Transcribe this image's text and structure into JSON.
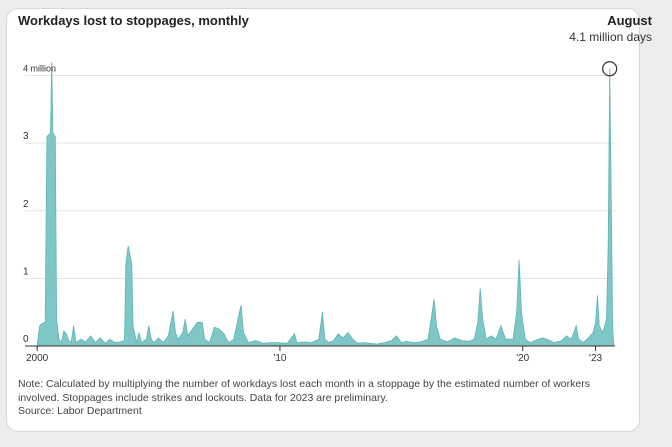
{
  "title": "Workdays lost to stoppages, monthly",
  "annotation": {
    "label": "August",
    "value_text": "4.1 million days"
  },
  "note": "Note: Calculated by multiplying the number of workdays lost each month in a stoppage by the estimated number of workers involved. Stoppages include strikes and lockouts. Data for 2023 are preliminary.",
  "source": "Source: Labor Department",
  "colors": {
    "area": "#7fc6c6",
    "area_stroke": "#5fb5b5",
    "grid": "#e3e3e3",
    "axis": "#333333"
  },
  "chart_data": {
    "type": "area",
    "title": "Workdays lost to stoppages, monthly",
    "xlabel": "",
    "ylabel": "",
    "x_range": [
      2000,
      2023.75
    ],
    "ylim": [
      0,
      4.2
    ],
    "y_ticks": [
      {
        "value": 0,
        "label": "0"
      },
      {
        "value": 1,
        "label": "1"
      },
      {
        "value": 2,
        "label": "2"
      },
      {
        "value": 3,
        "label": "3"
      },
      {
        "value": 4,
        "label": "4 million"
      }
    ],
    "x_ticks": [
      {
        "value": 2000,
        "label": "2000"
      },
      {
        "value": 2010,
        "label": "'10"
      },
      {
        "value": 2020,
        "label": "'20"
      },
      {
        "value": 2023,
        "label": "'23"
      }
    ],
    "grid": true,
    "highlight": {
      "x": 2023.58,
      "y": 4.1
    },
    "series": [
      {
        "points": [
          [
            2000.0,
            0.0
          ],
          [
            2000.1,
            0.3
          ],
          [
            2000.2,
            0.33
          ],
          [
            2000.33,
            0.35
          ],
          [
            2000.4,
            3.1
          ],
          [
            2000.55,
            3.15
          ],
          [
            2000.6,
            4.2
          ],
          [
            2000.65,
            3.15
          ],
          [
            2000.75,
            3.1
          ],
          [
            2000.8,
            0.4
          ],
          [
            2000.9,
            0.1
          ],
          [
            2001.0,
            0.05
          ],
          [
            2001.1,
            0.22
          ],
          [
            2001.2,
            0.18
          ],
          [
            2001.3,
            0.08
          ],
          [
            2001.4,
            0.05
          ],
          [
            2001.5,
            0.3
          ],
          [
            2001.6,
            0.05
          ],
          [
            2001.8,
            0.1
          ],
          [
            2002.0,
            0.06
          ],
          [
            2002.2,
            0.15
          ],
          [
            2002.4,
            0.05
          ],
          [
            2002.6,
            0.12
          ],
          [
            2002.8,
            0.04
          ],
          [
            2003.0,
            0.1
          ],
          [
            2003.2,
            0.05
          ],
          [
            2003.4,
            0.06
          ],
          [
            2003.6,
            0.08
          ],
          [
            2003.65,
            1.2
          ],
          [
            2003.7,
            1.35
          ],
          [
            2003.75,
            1.48
          ],
          [
            2003.85,
            1.3
          ],
          [
            2003.9,
            1.2
          ],
          [
            2003.95,
            0.3
          ],
          [
            2004.1,
            0.05
          ],
          [
            2004.2,
            0.2
          ],
          [
            2004.3,
            0.05
          ],
          [
            2004.5,
            0.1
          ],
          [
            2004.6,
            0.3
          ],
          [
            2004.7,
            0.1
          ],
          [
            2004.8,
            0.05
          ],
          [
            2005.0,
            0.12
          ],
          [
            2005.2,
            0.05
          ],
          [
            2005.4,
            0.15
          ],
          [
            2005.6,
            0.52
          ],
          [
            2005.7,
            0.2
          ],
          [
            2005.8,
            0.1
          ],
          [
            2006.0,
            0.2
          ],
          [
            2006.1,
            0.4
          ],
          [
            2006.2,
            0.15
          ],
          [
            2006.4,
            0.25
          ],
          [
            2006.6,
            0.35
          ],
          [
            2006.8,
            0.35
          ],
          [
            2006.9,
            0.1
          ],
          [
            2007.1,
            0.05
          ],
          [
            2007.3,
            0.28
          ],
          [
            2007.5,
            0.25
          ],
          [
            2007.7,
            0.18
          ],
          [
            2007.8,
            0.1
          ],
          [
            2007.9,
            0.05
          ],
          [
            2008.1,
            0.1
          ],
          [
            2008.3,
            0.45
          ],
          [
            2008.4,
            0.6
          ],
          [
            2008.5,
            0.2
          ],
          [
            2008.7,
            0.05
          ],
          [
            2009.0,
            0.08
          ],
          [
            2009.3,
            0.04
          ],
          [
            2009.6,
            0.05
          ],
          [
            2009.9,
            0.05
          ],
          [
            2010.3,
            0.04
          ],
          [
            2010.6,
            0.18
          ],
          [
            2010.7,
            0.05
          ],
          [
            2011.0,
            0.06
          ],
          [
            2011.3,
            0.05
          ],
          [
            2011.6,
            0.1
          ],
          [
            2011.75,
            0.5
          ],
          [
            2011.85,
            0.1
          ],
          [
            2012.0,
            0.05
          ],
          [
            2012.2,
            0.08
          ],
          [
            2012.4,
            0.18
          ],
          [
            2012.6,
            0.12
          ],
          [
            2012.8,
            0.2
          ],
          [
            2013.0,
            0.1
          ],
          [
            2013.2,
            0.04
          ],
          [
            2013.5,
            0.05
          ],
          [
            2014.0,
            0.03
          ],
          [
            2014.3,
            0.05
          ],
          [
            2014.6,
            0.08
          ],
          [
            2014.8,
            0.15
          ],
          [
            2015.0,
            0.05
          ],
          [
            2015.2,
            0.07
          ],
          [
            2015.5,
            0.05
          ],
          [
            2015.8,
            0.06
          ],
          [
            2016.1,
            0.1
          ],
          [
            2016.25,
            0.45
          ],
          [
            2016.35,
            0.7
          ],
          [
            2016.45,
            0.3
          ],
          [
            2016.6,
            0.1
          ],
          [
            2016.9,
            0.06
          ],
          [
            2017.2,
            0.12
          ],
          [
            2017.5,
            0.08
          ],
          [
            2017.8,
            0.07
          ],
          [
            2018.0,
            0.1
          ],
          [
            2018.15,
            0.35
          ],
          [
            2018.25,
            0.85
          ],
          [
            2018.35,
            0.4
          ],
          [
            2018.5,
            0.1
          ],
          [
            2018.7,
            0.15
          ],
          [
            2018.9,
            0.1
          ],
          [
            2019.1,
            0.3
          ],
          [
            2019.3,
            0.1
          ],
          [
            2019.6,
            0.1
          ],
          [
            2019.75,
            0.5
          ],
          [
            2019.85,
            1.27
          ],
          [
            2019.95,
            0.5
          ],
          [
            2020.1,
            0.1
          ],
          [
            2020.3,
            0.05
          ],
          [
            2020.5,
            0.08
          ],
          [
            2020.8,
            0.12
          ],
          [
            2021.0,
            0.1
          ],
          [
            2021.3,
            0.05
          ],
          [
            2021.6,
            0.08
          ],
          [
            2021.8,
            0.15
          ],
          [
            2022.0,
            0.1
          ],
          [
            2022.2,
            0.3
          ],
          [
            2022.3,
            0.1
          ],
          [
            2022.5,
            0.05
          ],
          [
            2022.7,
            0.12
          ],
          [
            2022.9,
            0.2
          ],
          [
            2023.0,
            0.35
          ],
          [
            2023.08,
            0.75
          ],
          [
            2023.15,
            0.3
          ],
          [
            2023.3,
            0.2
          ],
          [
            2023.45,
            0.4
          ],
          [
            2023.52,
            1.5
          ],
          [
            2023.58,
            4.1
          ],
          [
            2023.65,
            2.0
          ],
          [
            2023.7,
            0.3
          ],
          [
            2023.75,
            0.0
          ]
        ]
      }
    ]
  }
}
